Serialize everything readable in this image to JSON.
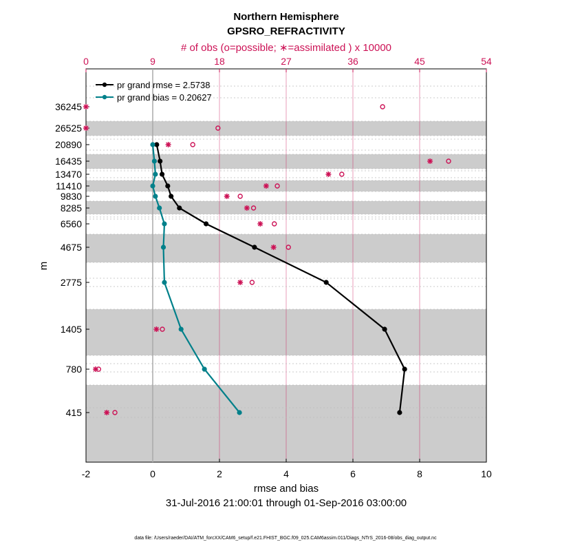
{
  "chart_data": {
    "type": "line",
    "title": "Northern Hemisphere",
    "subtitle": "GPSRO_REFRACTIVITY",
    "top_axis_label": "# of obs (o=possible; ∗=assimilated ) x 10000",
    "xlabel": "rmse and bias",
    "ylabel": "m",
    "date_range": "31-Jul-2016 21:00:01 through 01-Sep-2016 03:00:00",
    "footnote": "data file: /Users/raeder/DAI/ATM_forcXX/CAM6_setup/f.e21.FHIST_BGC.f09_025.CAM6assim.011/Diags_NTrS_2016-08/obs_diag_output.nc",
    "xlim": [
      -2,
      10
    ],
    "x_ticks": [
      "-2",
      "0",
      "2",
      "4",
      "6",
      "8",
      "10"
    ],
    "top_xlim": [
      0,
      54
    ],
    "top_ticks": [
      "0",
      "9",
      "18",
      "27",
      "36",
      "45",
      "54"
    ],
    "levels": [
      "36245",
      "26525",
      "20890",
      "16435",
      "13470",
      "11410",
      "9830",
      "8285",
      "6560",
      "4675",
      "2775",
      "1405",
      "780",
      "415"
    ],
    "legend": {
      "rmse_label": "pr grand rmse = 2.5738",
      "bias_label": "pr grand bias = 0.20627"
    },
    "series": [
      {
        "name": "pr grand rmse",
        "color": "#000000",
        "levels": [
          "20890",
          "16435",
          "13470",
          "11410",
          "9830",
          "8285",
          "6560",
          "4675",
          "2775",
          "1405",
          "780",
          "415"
        ],
        "values": [
          0.12,
          0.22,
          0.28,
          0.45,
          0.55,
          0.8,
          1.6,
          3.05,
          5.2,
          6.95,
          7.55,
          7.4
        ]
      },
      {
        "name": "pr grand bias",
        "color": "#00808a",
        "levels": [
          "20890",
          "16435",
          "13470",
          "11410",
          "9830",
          "8285",
          "6560",
          "4675",
          "2775",
          "1405",
          "780",
          "415"
        ],
        "values": [
          0.0,
          0.05,
          0.08,
          0.0,
          0.08,
          0.2,
          0.35,
          0.32,
          0.35,
          0.85,
          1.55,
          2.6
        ]
      }
    ],
    "obs_possible": {
      "levels": [
        "36245",
        "26525",
        "20890",
        "16435",
        "13470",
        "11410",
        "9830",
        "8285",
        "6560",
        "4675",
        "2775",
        "1405",
        "780",
        "415"
      ],
      "values": [
        40.0,
        17.8,
        14.4,
        48.9,
        34.5,
        25.8,
        20.8,
        22.6,
        25.4,
        27.3,
        22.4,
        10.3,
        1.7,
        3.9
      ]
    },
    "obs_assimilated": {
      "levels": [
        "36245",
        "26525",
        "20890",
        "16435",
        "13470",
        "11410",
        "9830",
        "8285",
        "6560",
        "4675",
        "2775",
        "1405",
        "780",
        "415"
      ],
      "values": [
        0.0,
        0.0,
        11.1,
        46.4,
        32.7,
        24.3,
        19.0,
        21.7,
        23.5,
        25.3,
        20.8,
        9.5,
        1.3,
        2.8
      ]
    },
    "colors": {
      "accent": "#cc1155",
      "shade": "#cccccc",
      "zero_line": "#aaaaaa",
      "rmse": "#000000",
      "bias": "#00808a",
      "legend_text": "#1010dd"
    }
  }
}
